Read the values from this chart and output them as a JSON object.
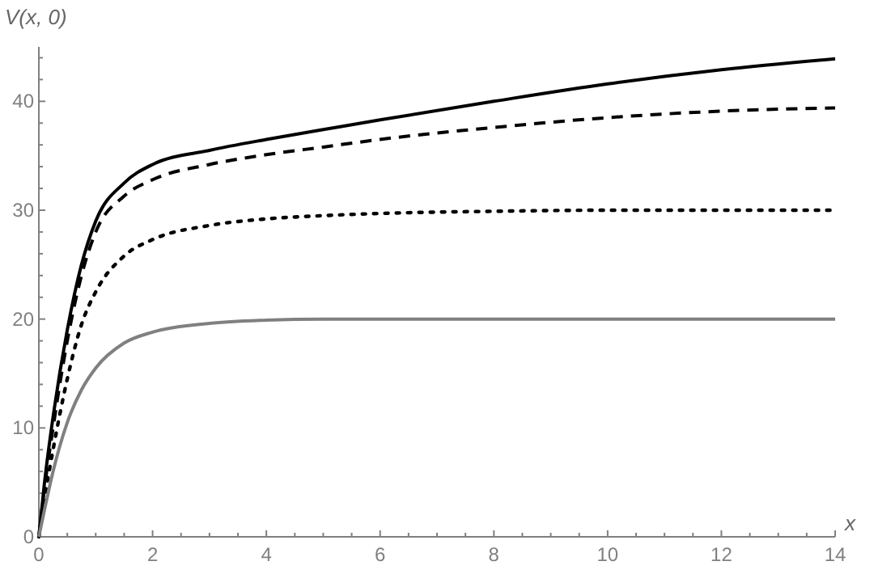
{
  "chart_data": {
    "type": "line",
    "xlabel": "x",
    "ylabel": "V(x, 0)",
    "xlim": [
      0,
      14
    ],
    "ylim": [
      0,
      45
    ],
    "xticks": [
      0,
      {
        "value": 0.5,
        "label": null
      },
      {
        "value": 1,
        "label": null
      },
      {
        "value": 1.5,
        "label": null
      },
      2,
      {
        "value": 2.5,
        "label": null
      },
      {
        "value": 3,
        "label": null
      },
      {
        "value": 3.5,
        "label": null
      },
      4,
      {
        "value": 4.5,
        "label": null
      },
      {
        "value": 5,
        "label": null
      },
      {
        "value": 5.5,
        "label": null
      },
      6,
      {
        "value": 6.5,
        "label": null
      },
      {
        "value": 7,
        "label": null
      },
      {
        "value": 7.5,
        "label": null
      },
      8,
      {
        "value": 8.5,
        "label": null
      },
      {
        "value": 9,
        "label": null
      },
      {
        "value": 9.5,
        "label": null
      },
      10,
      {
        "value": 10.5,
        "label": null
      },
      {
        "value": 11,
        "label": null
      },
      {
        "value": 11.5,
        "label": null
      },
      12,
      {
        "value": 12.5,
        "label": null
      },
      {
        "value": 13,
        "label": null
      },
      {
        "value": 13.5,
        "label": null
      },
      14
    ],
    "yticks": [
      0,
      {
        "value": 2,
        "label": null
      },
      {
        "value": 4,
        "label": null
      },
      {
        "value": 6,
        "label": null
      },
      {
        "value": 8,
        "label": null
      },
      10,
      {
        "value": 12,
        "label": null
      },
      {
        "value": 14,
        "label": null
      },
      {
        "value": 16,
        "label": null
      },
      {
        "value": 18,
        "label": null
      },
      20,
      {
        "value": 22,
        "label": null
      },
      {
        "value": 24,
        "label": null
      },
      {
        "value": 26,
        "label": null
      },
      {
        "value": 28,
        "label": null
      },
      30,
      {
        "value": 32,
        "label": null
      },
      {
        "value": 34,
        "label": null
      },
      {
        "value": 36,
        "label": null
      },
      {
        "value": 38,
        "label": null
      },
      40,
      {
        "value": 42,
        "label": null
      },
      {
        "value": 44,
        "label": null
      }
    ],
    "series": [
      {
        "color": "#000000",
        "line_style": "solid",
        "x": [
          0,
          0.1,
          0.25,
          0.5,
          0.75,
          1,
          1.5,
          2,
          3,
          4,
          5,
          6,
          8,
          10,
          12,
          14
        ],
        "values": [
          0,
          5,
          11,
          19,
          25,
          29,
          32.5,
          34.2,
          35.5,
          36.5,
          37.4,
          38.3,
          40,
          41.6,
          42.9,
          43.9
        ]
      },
      {
        "color": "#000000",
        "line_style": "dashed",
        "x": [
          0,
          0.1,
          0.25,
          0.5,
          0.75,
          1,
          1.5,
          2,
          3,
          4,
          5,
          6,
          8,
          10,
          12,
          14
        ],
        "values": [
          0,
          4.5,
          10,
          18,
          24,
          28,
          31.3,
          32.8,
          34.2,
          35.1,
          35.8,
          36.5,
          37.6,
          38.5,
          39.1,
          39.4
        ]
      },
      {
        "color": "#000000",
        "line_style": "dotted",
        "x": [
          0,
          0.1,
          0.25,
          0.5,
          0.75,
          1,
          1.5,
          2,
          3,
          4,
          5,
          6,
          8,
          10,
          14
        ],
        "values": [
          0,
          3.5,
          8,
          14.5,
          19.5,
          22.5,
          25.8,
          27.3,
          28.6,
          29.2,
          29.5,
          29.7,
          29.9,
          30,
          30
        ]
      },
      {
        "color": "#808080",
        "line_style": "solid",
        "x": [
          0,
          0.1,
          0.25,
          0.5,
          0.75,
          1,
          1.5,
          2,
          3,
          4,
          5,
          14
        ],
        "values": [
          0,
          2.5,
          6,
          10.5,
          13.5,
          15.5,
          17.8,
          18.8,
          19.6,
          19.9,
          20,
          20
        ]
      }
    ]
  }
}
